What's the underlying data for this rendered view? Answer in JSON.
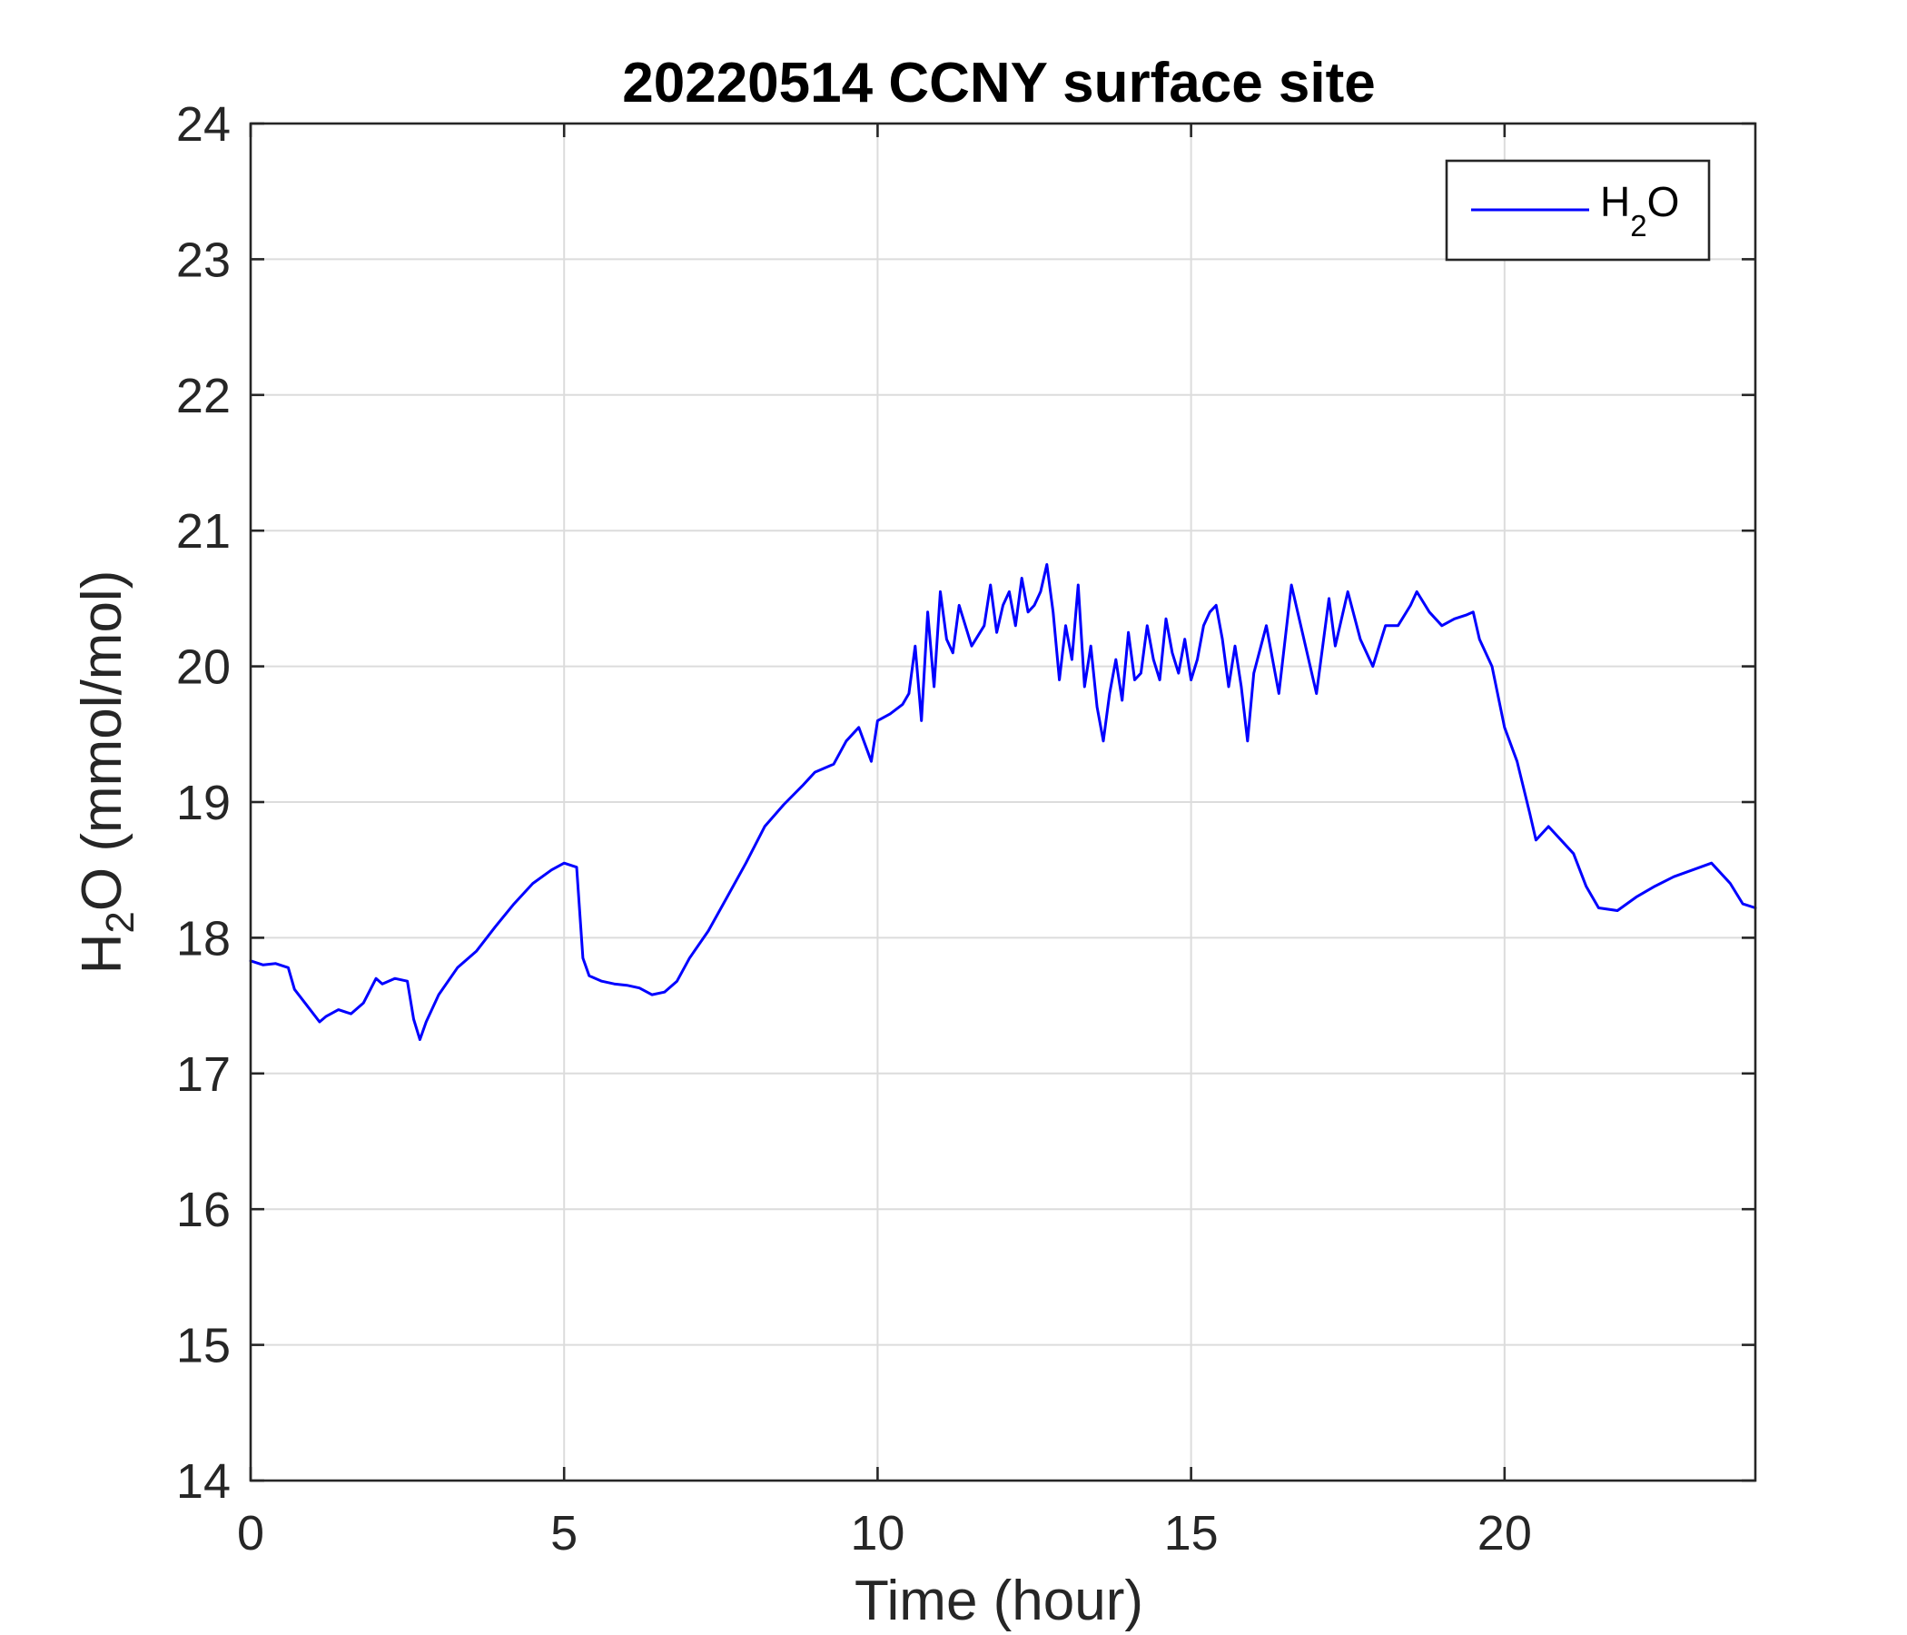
{
  "chart_data": {
    "type": "line",
    "title": "20220514 CCNY surface site",
    "xlabel": "Time (hour)",
    "ylabel": {
      "main": "H",
      "sub": "2",
      "rest": "O (mmol/mol)"
    },
    "xlim": [
      0,
      24
    ],
    "ylim": [
      14,
      24
    ],
    "xticks": [
      0,
      5,
      10,
      15,
      20
    ],
    "yticks": [
      14,
      15,
      16,
      17,
      18,
      19,
      20,
      21,
      22,
      23,
      24
    ],
    "grid": true,
    "legend_position": "top-right",
    "series": [
      {
        "name": {
          "main": "H",
          "sub": "2",
          "rest": "O"
        },
        "color": "#0000ff",
        "x": [
          0,
          0.2,
          0.4,
          0.6,
          0.7,
          0.9,
          1.1,
          1.2,
          1.4,
          1.6,
          1.8,
          2.0,
          2.1,
          2.3,
          2.5,
          2.6,
          2.7,
          2.8,
          3.0,
          3.3,
          3.6,
          3.9,
          4.2,
          4.5,
          4.8,
          5.0,
          5.2,
          5.3,
          5.4,
          5.6,
          5.8,
          6.0,
          6.2,
          6.4,
          6.6,
          6.8,
          7.0,
          7.3,
          7.6,
          7.9,
          8.2,
          8.5,
          8.8,
          9.0,
          9.3,
          9.5,
          9.7,
          9.9,
          10.0,
          10.2,
          10.4,
          10.5,
          10.6,
          10.7,
          10.8,
          10.9,
          11.0,
          11.1,
          11.2,
          11.3,
          11.5,
          11.7,
          11.8,
          11.9,
          12.0,
          12.1,
          12.2,
          12.3,
          12.4,
          12.5,
          12.6,
          12.7,
          12.8,
          12.9,
          13.0,
          13.1,
          13.2,
          13.3,
          13.4,
          13.5,
          13.6,
          13.7,
          13.8,
          13.9,
          14.0,
          14.1,
          14.2,
          14.3,
          14.4,
          14.5,
          14.6,
          14.7,
          14.8,
          14.9,
          15.0,
          15.1,
          15.2,
          15.3,
          15.4,
          15.5,
          15.6,
          15.7,
          15.8,
          15.9,
          16.0,
          16.2,
          16.4,
          16.6,
          16.8,
          17.0,
          17.2,
          17.3,
          17.5,
          17.7,
          17.9,
          18.1,
          18.3,
          18.5,
          18.6,
          18.8,
          19.0,
          19.2,
          19.4,
          19.5,
          19.6,
          19.8,
          20.0,
          20.2,
          20.4,
          20.5,
          20.7,
          20.9,
          21.1,
          21.3,
          21.5,
          21.8,
          22.1,
          22.4,
          22.7,
          23.0,
          23.3,
          23.6,
          23.8,
          24.0
        ],
        "values": [
          17.83,
          17.8,
          17.81,
          17.78,
          17.62,
          17.5,
          17.38,
          17.42,
          17.47,
          17.44,
          17.52,
          17.7,
          17.66,
          17.7,
          17.68,
          17.4,
          17.25,
          17.38,
          17.58,
          17.78,
          17.9,
          18.08,
          18.25,
          18.4,
          18.5,
          18.55,
          18.52,
          17.85,
          17.72,
          17.68,
          17.66,
          17.65,
          17.63,
          17.58,
          17.6,
          17.68,
          17.85,
          18.05,
          18.3,
          18.55,
          18.82,
          18.98,
          19.12,
          19.22,
          19.28,
          19.45,
          19.55,
          19.3,
          19.6,
          19.65,
          19.72,
          19.8,
          20.15,
          19.6,
          20.4,
          19.85,
          20.55,
          20.2,
          20.1,
          20.45,
          20.15,
          20.3,
          20.6,
          20.25,
          20.45,
          20.55,
          20.3,
          20.65,
          20.4,
          20.45,
          20.55,
          20.75,
          20.4,
          19.9,
          20.3,
          20.05,
          20.6,
          19.85,
          20.15,
          19.7,
          19.45,
          19.8,
          20.05,
          19.75,
          20.25,
          19.9,
          19.95,
          20.3,
          20.05,
          19.9,
          20.35,
          20.1,
          19.95,
          20.2,
          19.9,
          20.05,
          20.3,
          20.4,
          20.45,
          20.2,
          19.85,
          20.15,
          19.85,
          19.45,
          19.95,
          20.3,
          19.8,
          20.6,
          20.2,
          19.8,
          20.5,
          20.15,
          20.55,
          20.2,
          20.0,
          20.3,
          20.3,
          20.45,
          20.55,
          20.4,
          20.3,
          20.35,
          20.38,
          20.4,
          20.2,
          20.0,
          19.55,
          19.3,
          18.92,
          18.72,
          18.82,
          18.72,
          18.62,
          18.38,
          18.22,
          18.2,
          18.3,
          18.38,
          18.45,
          18.5,
          18.55,
          18.4,
          18.25,
          18.22
        ]
      }
    ]
  }
}
